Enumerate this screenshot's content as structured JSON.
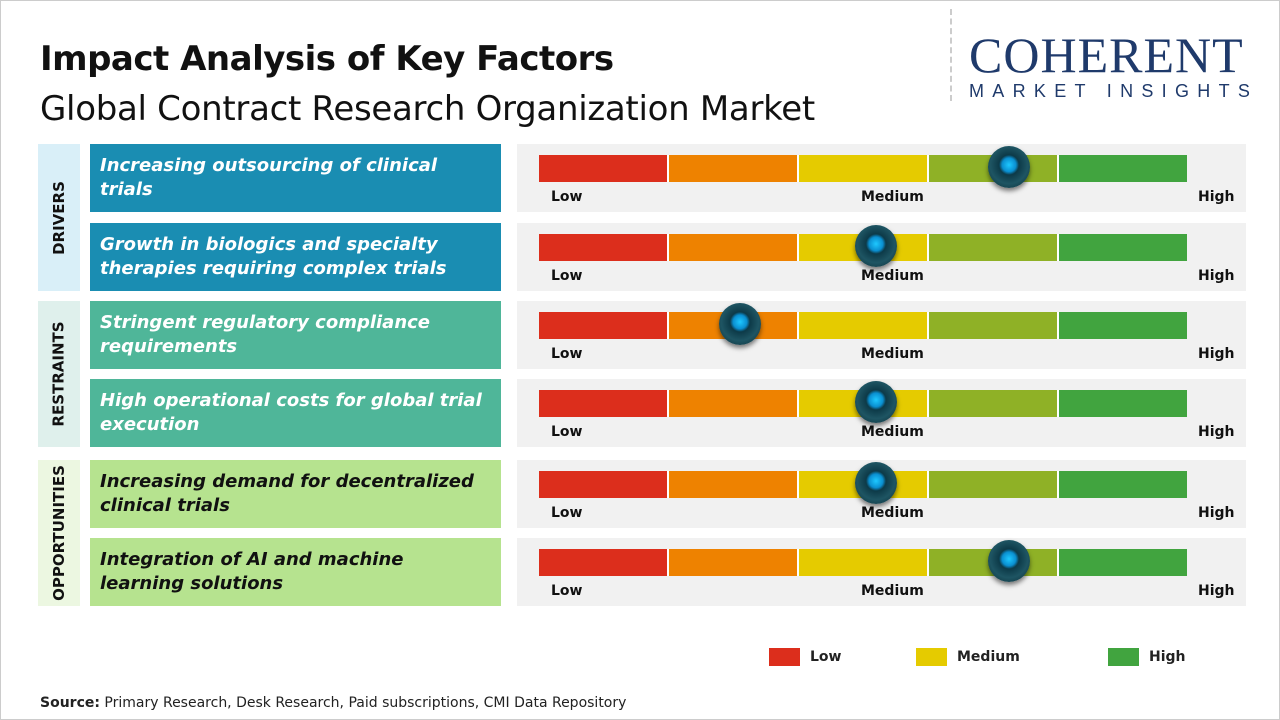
{
  "header": {
    "title": "Impact Analysis of Key Factors",
    "subtitle": "Global Contract Research Organization Market"
  },
  "logo": {
    "main": "COHERENT",
    "sub": "MARKET INSIGHTS"
  },
  "colors": {
    "low": "#dc2e1c",
    "low_mid": "#ee8200",
    "medium": "#e5cb00",
    "mid_high": "#8fb126",
    "high": "#41a43f",
    "drivers": "#1a8db2",
    "restraints": "#4fb699",
    "opportunities": "#b6e38f"
  },
  "chart_data": {
    "type": "gauge",
    "scale_labels": [
      "Low",
      "Medium",
      "High"
    ],
    "categories": [
      {
        "name": "DRIVERS",
        "factors": [
          {
            "label": "Increasing outsourcing of clinical trials",
            "impact": 0.725
          },
          {
            "label": "Growth in biologics and specialty therapies requiring complex trials",
            "impact": 0.52
          }
        ]
      },
      {
        "name": "RESTRAINTS",
        "factors": [
          {
            "label": "Stringent regulatory compliance requirements",
            "impact": 0.31
          },
          {
            "label": "High operational costs for global trial execution",
            "impact": 0.52
          }
        ]
      },
      {
        "name": "OPPORTUNITIES",
        "factors": [
          {
            "label": "Increasing demand for decentralized clinical trials",
            "impact": 0.52
          },
          {
            "label": "Integration of AI and machine learning solutions",
            "impact": 0.725
          }
        ]
      }
    ],
    "legend": [
      "Low",
      "Medium",
      "High"
    ]
  },
  "footer": {
    "source_label": "Source:",
    "source_text": " Primary Research, Desk Research, Paid subscriptions, CMI Data Repository"
  }
}
